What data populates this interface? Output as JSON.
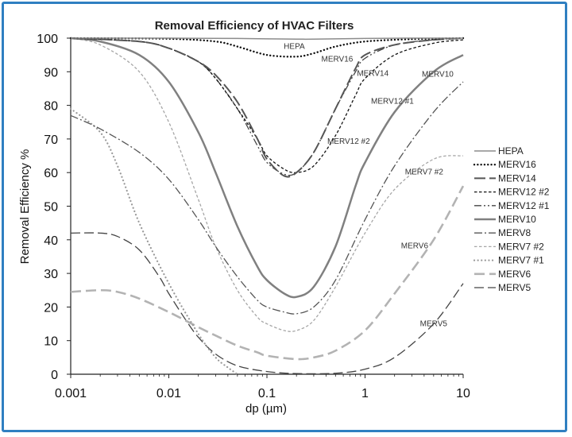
{
  "chart_data": {
    "type": "line",
    "title": "Removal Efficiency of HVAC Filters",
    "xlabel": "dp (µm)",
    "ylabel": "Removal Efficiency %",
    "x_scale": "log",
    "xlim": [
      0.001,
      10
    ],
    "ylim": [
      0,
      100
    ],
    "x_ticks": [
      0.001,
      0.01,
      0.1,
      1,
      10
    ],
    "x_tick_labels": [
      "0.001",
      "0.01",
      "0.1",
      "1",
      "10"
    ],
    "y_ticks": [
      0,
      10,
      20,
      30,
      40,
      50,
      60,
      70,
      80,
      90,
      100
    ],
    "grid": false,
    "legend_position": "right",
    "series": [
      {
        "name": "HEPA",
        "style": "solid-thin",
        "color": "#8c8c8c",
        "x": [
          0.001,
          0.01,
          0.05,
          0.1,
          0.2,
          0.3,
          0.5,
          1,
          3,
          10
        ],
        "y": [
          100,
          100,
          99.9,
          99.8,
          99.7,
          99.7,
          99.8,
          99.9,
          100,
          100
        ]
      },
      {
        "name": "MERV16",
        "style": "dotted",
        "color": "#111111",
        "x": [
          0.001,
          0.01,
          0.03,
          0.05,
          0.1,
          0.2,
          0.3,
          0.5,
          1,
          3,
          10
        ],
        "y": [
          100,
          99.8,
          99,
          97.5,
          95,
          94.5,
          95.5,
          97.5,
          99,
          99.7,
          100
        ]
      },
      {
        "name": "MERV14",
        "style": "long-dash",
        "color": "#555555",
        "x": [
          0.001,
          0.005,
          0.01,
          0.02,
          0.03,
          0.05,
          0.08,
          0.1,
          0.15,
          0.2,
          0.3,
          0.5,
          0.8,
          1,
          2,
          5,
          10
        ],
        "y": [
          100,
          99,
          97,
          93,
          89,
          81,
          70,
          64,
          59,
          60,
          66,
          79,
          91,
          95,
          98,
          99.5,
          100
        ]
      },
      {
        "name": "MERV12 #2",
        "style": "short-dash",
        "color": "#111111",
        "x": [
          0.001,
          0.005,
          0.01,
          0.02,
          0.03,
          0.05,
          0.08,
          0.1,
          0.15,
          0.2,
          0.3,
          0.5,
          0.8,
          1,
          2,
          5,
          10
        ],
        "y": [
          100,
          99,
          97,
          93,
          88,
          79,
          70,
          65,
          61,
          60,
          62,
          71,
          83,
          88,
          95,
          98.5,
          99.5
        ]
      },
      {
        "name": "MERV12 #1",
        "style": "dash-dot-dot",
        "color": "#444444",
        "x": [
          0.001,
          0.005,
          0.01,
          0.02,
          0.03,
          0.05,
          0.08,
          0.1,
          0.15,
          0.2,
          0.3,
          0.5,
          0.8,
          1,
          2,
          5,
          10
        ],
        "y": [
          100,
          99,
          97,
          93,
          88,
          79,
          68,
          63,
          59.5,
          60,
          66,
          79,
          90,
          94,
          98,
          99.5,
          100
        ]
      },
      {
        "name": "MERV10",
        "style": "solid-thick",
        "color": "#808080",
        "x": [
          0.001,
          0.002,
          0.005,
          0.01,
          0.02,
          0.03,
          0.05,
          0.08,
          0.1,
          0.15,
          0.2,
          0.3,
          0.5,
          0.8,
          1,
          2,
          5,
          10
        ],
        "y": [
          100,
          99,
          95,
          87,
          72,
          60,
          44,
          32,
          28,
          24,
          23,
          26,
          38,
          56,
          63,
          78,
          90,
          95
        ]
      },
      {
        "name": "MERV8",
        "style": "dash-dot",
        "color": "#555555",
        "x": [
          0.001,
          0.002,
          0.005,
          0.01,
          0.02,
          0.03,
          0.05,
          0.08,
          0.1,
          0.15,
          0.2,
          0.3,
          0.5,
          1,
          2,
          5,
          10
        ],
        "y": [
          77,
          73,
          66,
          58,
          46,
          38,
          29,
          22,
          20,
          18.5,
          18,
          20,
          28,
          46,
          62,
          78,
          87
        ]
      },
      {
        "name": "MERV7 #2",
        "style": "short-dash-light",
        "color": "#a6a6a6",
        "x": [
          0.001,
          0.002,
          0.005,
          0.01,
          0.02,
          0.03,
          0.05,
          0.08,
          0.1,
          0.15,
          0.2,
          0.3,
          0.5,
          1,
          2,
          5,
          10
        ],
        "y": [
          100,
          98,
          90,
          75,
          52,
          38,
          25,
          17,
          15,
          13,
          13,
          16,
          26,
          42,
          55,
          64,
          65
        ]
      },
      {
        "name": "MERV7 #1",
        "style": "dotted-light",
        "color": "#9a9a9a",
        "x": [
          0.001,
          0.002,
          0.003,
          0.005,
          0.01,
          0.02,
          0.03,
          0.04,
          0.05
        ],
        "y": [
          79,
          72,
          62,
          45,
          27,
          12,
          5,
          2,
          0
        ]
      },
      {
        "name": "MERV6",
        "style": "long-dash-light",
        "color": "#b3b3b3",
        "x": [
          0.001,
          0.002,
          0.003,
          0.005,
          0.01,
          0.02,
          0.03,
          0.05,
          0.08,
          0.1,
          0.2,
          0.3,
          0.5,
          1,
          2,
          5,
          10
        ],
        "y": [
          24.5,
          25,
          24.5,
          22.5,
          18.5,
          14,
          11.5,
          8.5,
          6.5,
          5.5,
          4.5,
          5,
          7,
          13,
          24,
          40,
          56
        ]
      },
      {
        "name": "MERV5",
        "style": "long-dash-dark",
        "color": "#444444",
        "x": [
          0.001,
          0.002,
          0.003,
          0.005,
          0.008,
          0.01,
          0.015,
          0.02,
          0.03,
          0.05,
          0.1,
          0.2,
          0.5,
          1,
          2,
          5,
          10
        ],
        "y": [
          42,
          42,
          41,
          37,
          29,
          24,
          16,
          11,
          6,
          2.5,
          0.8,
          0.2,
          0.3,
          1.5,
          5,
          15,
          27
        ]
      }
    ],
    "annotations": [
      {
        "text": "HEPA",
        "x": 0.19,
        "y": 96.8
      },
      {
        "text": "MERV16",
        "x": 0.52,
        "y": 93
      },
      {
        "text": "MERV14",
        "x": 1.2,
        "y": 88.8
      },
      {
        "text": "MERV10",
        "x": 5.5,
        "y": 88.5
      },
      {
        "text": "MERV12 #1",
        "x": 1.9,
        "y": 80.5
      },
      {
        "text": "MERV12 #2",
        "x": 0.68,
        "y": 68.5
      },
      {
        "text": "MERV7 #2",
        "x": 4.0,
        "y": 59.5
      },
      {
        "text": "MERV6",
        "x": 3.2,
        "y": 37.5
      },
      {
        "text": "MERV5",
        "x": 5.0,
        "y": 14.3
      }
    ]
  },
  "colors": {
    "frame_border": "#2f7fc1",
    "axis": "#222222"
  }
}
